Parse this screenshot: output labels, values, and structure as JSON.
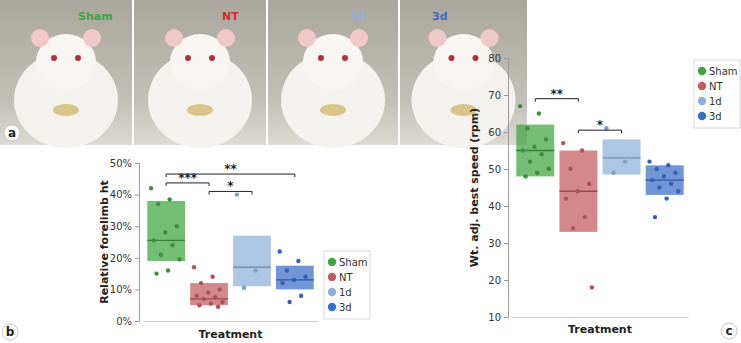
{
  "photos": {
    "panel_label": "a",
    "labels": [
      {
        "text": "Sham",
        "color": "#3fa33f"
      },
      {
        "text": "NT",
        "color": "#d42a2a"
      },
      {
        "text": "1d",
        "color": "#8fb0dc"
      },
      {
        "text": "3d",
        "color": "#3a6cc8"
      }
    ]
  },
  "chart_data": [
    {
      "type": "box",
      "panel_label": "b",
      "x_label": "Treatment",
      "y_label": "Relative forelimb ht",
      "ylim": [
        0,
        50
      ],
      "yticks": [
        {
          "value": 0,
          "label": "0%"
        },
        {
          "value": 10,
          "label": "10%"
        },
        {
          "value": 20,
          "label": "20%"
        },
        {
          "value": 30,
          "label": "30%"
        },
        {
          "value": 40,
          "label": "40%"
        },
        {
          "value": 50,
          "label": "50%"
        }
      ],
      "tick_labels": "y",
      "legend": "right",
      "series": [
        {
          "name": "Sham",
          "color": "#3fa33f",
          "box": {
            "low": 19,
            "median": 25.5,
            "high": 38
          },
          "values": [
            42,
            38.5,
            37,
            30,
            28,
            25.5,
            24,
            21,
            19.5,
            16,
            15
          ]
        },
        {
          "name": "NT",
          "color": "#c25b5e",
          "box": {
            "low": 5,
            "median": 7,
            "high": 12
          },
          "values": [
            17,
            14,
            12,
            10,
            9,
            8,
            7.5,
            7,
            6,
            5.5,
            5,
            4.5
          ]
        },
        {
          "name": "1d",
          "color": "#8fb0dc",
          "box": {
            "low": 11,
            "median": 17,
            "high": 27
          },
          "values": [
            40,
            16,
            10.5
          ]
        },
        {
          "name": "3d",
          "color": "#3a6cc8",
          "box": {
            "low": 10,
            "median": 13,
            "high": 17.5
          },
          "values": [
            22,
            19,
            16,
            14,
            13,
            12,
            8,
            6
          ]
        }
      ],
      "annotations": [
        {
          "text": "***",
          "from": 0,
          "to": 1,
          "y": 43.7
        },
        {
          "text": "*",
          "from": 1,
          "to": 2,
          "y": 41
        },
        {
          "text": "**",
          "from": 0,
          "to": 3,
          "y": 46.5
        }
      ]
    },
    {
      "type": "box",
      "panel_label": "c",
      "x_label": "Treatment",
      "y_label": "Wt. adj. best speed (rpm)",
      "ylim": [
        10,
        80
      ],
      "yticks": [
        10,
        20,
        30,
        40,
        50,
        60,
        70,
        80
      ],
      "tick_labels": "y",
      "legend": "top-right",
      "series": [
        {
          "name": "Sham",
          "color": "#3fa33f",
          "box": {
            "low": 48,
            "median": 55,
            "high": 62
          },
          "values": [
            67,
            65,
            61,
            58,
            56,
            55,
            54,
            52,
            50,
            49,
            48
          ]
        },
        {
          "name": "NT",
          "color": "#c25b5e",
          "box": {
            "low": 33,
            "median": 44,
            "high": 55
          },
          "values": [
            57,
            55,
            50,
            46,
            44,
            42,
            37,
            34,
            18
          ]
        },
        {
          "name": "1d",
          "color": "#8fb0dc",
          "box": {
            "low": 48.5,
            "median": 53,
            "high": 58
          },
          "values": [
            61,
            52,
            49
          ]
        },
        {
          "name": "3d",
          "color": "#3a6cc8",
          "box": {
            "low": 43,
            "median": 47,
            "high": 51
          },
          "values": [
            52,
            51,
            50,
            49,
            48,
            47,
            46,
            45,
            44,
            42,
            37
          ]
        }
      ],
      "annotations": [
        {
          "text": "**",
          "from": 0,
          "to": 1,
          "y": 69
        },
        {
          "text": "*",
          "from": 1,
          "to": 2,
          "y": 60.5
        }
      ]
    }
  ]
}
